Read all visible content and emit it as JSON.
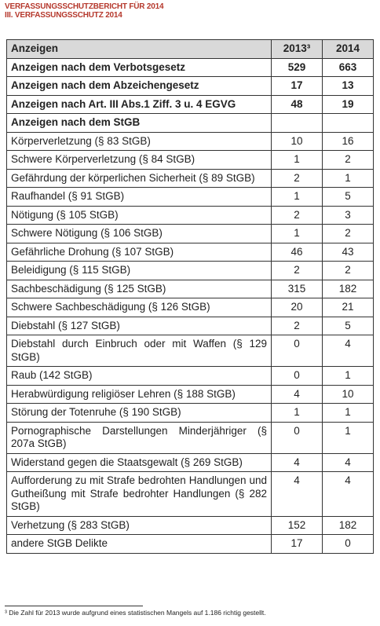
{
  "header": {
    "title": "VERFASSUNGSSCHUTZBERICHT FÜR 2014",
    "subtitle": "III. VERFASSUNGSSCHUTZ 2014"
  },
  "table": {
    "header": [
      "Anzeigen",
      "2013³",
      "2014"
    ],
    "rows": [
      [
        "Anzeigen nach dem Verbotsgesetz",
        529,
        663
      ],
      [
        "Anzeigen nach dem Abzeichengesetz",
        17,
        13
      ],
      [
        "Anzeigen nach Art. III Abs.1 Ziff. 3 u. 4 EGVG",
        48,
        19
      ],
      [
        "Anzeigen nach dem StGB"
      ],
      [
        "Körperverletzung (§ 83 StGB)",
        10,
        16
      ],
      [
        "Schwere Körperverletzung (§ 84 StGB)",
        1,
        2
      ],
      [
        "Gefährdung der körperlichen Sicherheit (§ 89 StGB)",
        2,
        1
      ],
      [
        "Raufhandel (§ 91 StGB)",
        1,
        5
      ],
      [
        "Nötigung (§ 105 StGB)",
        2,
        3
      ],
      [
        "Schwere Nötigung (§ 106 StGB)",
        1,
        2
      ],
      [
        "Gefährliche Drohung (§ 107 StGB)",
        46,
        43
      ],
      [
        "Beleidigung (§ 115 StGB)",
        2,
        2
      ],
      [
        "Sachbeschädigung (§ 125 StGB)",
        315,
        182
      ],
      [
        "Schwere Sachbeschädigung (§ 126 StGB)",
        20,
        21
      ],
      [
        "Diebstahl (§ 127 StGB)",
        2,
        5
      ],
      [
        "Diebstahl durch Einbruch oder mit Waffen (§ 129 StGB)",
        0,
        4
      ],
      [
        "Raub (142 StGB)",
        0,
        1
      ],
      [
        "Herabwürdigung religiöser Lehren (§ 188 StGB)",
        4,
        10
      ],
      [
        "Störung der Totenruhe (§ 190 StGB)",
        1,
        1
      ],
      [
        "Pornographische Darstellungen Minderjähriger (§ 207a StGB)",
        0,
        1
      ],
      [
        "Widerstand gegen die Staatsgewalt (§ 269 StGB)",
        4,
        4
      ],
      [
        "Aufforderung zu mit Strafe bedrohten Handlungen und Gutheißung mit Strafe bedrohter Handlungen (§ 282 StGB)",
        4,
        4
      ],
      [
        "Verhetzung (§ 283 StGB)",
        152,
        182
      ],
      [
        "andere StGB Delikte",
        17,
        0
      ]
    ]
  },
  "footnote": "³ Die Zahl für 2013 wurde aufgrund eines statistischen Mangels auf 1.186 richtig gestellt."
}
